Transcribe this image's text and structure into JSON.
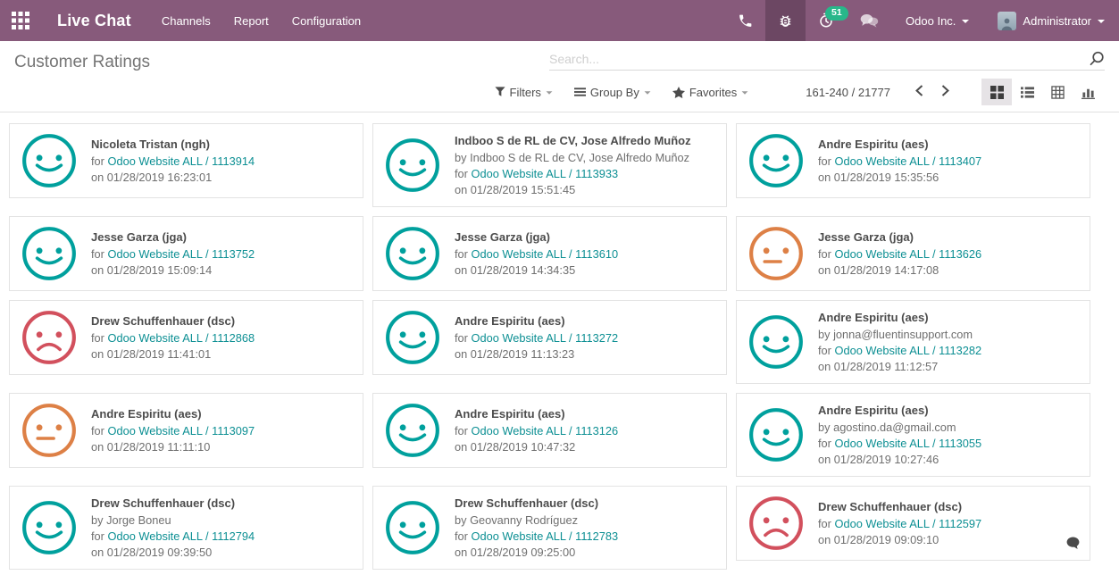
{
  "navbar": {
    "brand": "Live Chat",
    "menus": [
      "Channels",
      "Report",
      "Configuration"
    ],
    "activity_badge_count": "51",
    "company": "Odoo Inc.",
    "user": "Administrator"
  },
  "control_panel": {
    "title": "Customer Ratings",
    "search_placeholder": "Search...",
    "filters_label": "Filters",
    "group_by_label": "Group By",
    "favorites_label": "Favorites",
    "pager_value": "161-240 / 21777"
  },
  "labels": {
    "for_prefix": "for",
    "on_prefix": "on"
  },
  "colors": {
    "navbar_bg": "#875a7b",
    "badge_bg": "#28b78a",
    "link": "#0c8f93",
    "rating": {
      "happy": "#00a09d",
      "neutral": "#dd8046",
      "sad": "#d2505d"
    }
  },
  "cards": [
    {
      "rating": "happy",
      "title": "Nicoleta Tristan (ngh)",
      "by": null,
      "link": "Odoo Website ALL / 1113914",
      "datetime": "01/28/2019 16:23:01",
      "has_message": false
    },
    {
      "rating": "happy",
      "title": "Indboo S de RL de CV, Jose Alfredo Muñoz",
      "by": "by Indboo S de RL de CV, Jose Alfredo Muñoz",
      "link": "Odoo Website ALL / 1113933",
      "datetime": "01/28/2019 15:51:45",
      "has_message": false
    },
    {
      "rating": "happy",
      "title": "Andre Espiritu (aes)",
      "by": null,
      "link": "Odoo Website ALL / 1113407",
      "datetime": "01/28/2019 15:35:56",
      "has_message": false
    },
    {
      "rating": "happy",
      "title": "Jesse Garza (jga)",
      "by": null,
      "link": "Odoo Website ALL / 1113752",
      "datetime": "01/28/2019 15:09:14",
      "has_message": false
    },
    {
      "rating": "happy",
      "title": "Jesse Garza (jga)",
      "by": null,
      "link": "Odoo Website ALL / 1113610",
      "datetime": "01/28/2019 14:34:35",
      "has_message": false
    },
    {
      "rating": "neutral",
      "title": "Jesse Garza (jga)",
      "by": null,
      "link": "Odoo Website ALL / 1113626",
      "datetime": "01/28/2019 14:17:08",
      "has_message": false
    },
    {
      "rating": "sad",
      "title": "Drew Schuffenhauer (dsc)",
      "by": null,
      "link": "Odoo Website ALL / 1112868",
      "datetime": "01/28/2019 11:41:01",
      "has_message": false
    },
    {
      "rating": "happy",
      "title": "Andre Espiritu (aes)",
      "by": null,
      "link": "Odoo Website ALL / 1113272",
      "datetime": "01/28/2019 11:13:23",
      "has_message": false
    },
    {
      "rating": "happy",
      "title": "Andre Espiritu (aes)",
      "by": "by jonna@fluentinsupport.com",
      "link": "Odoo Website ALL / 1113282",
      "datetime": "01/28/2019 11:12:57",
      "has_message": false
    },
    {
      "rating": "neutral",
      "title": "Andre Espiritu (aes)",
      "by": null,
      "link": "Odoo Website ALL / 1113097",
      "datetime": "01/28/2019 11:11:10",
      "has_message": false
    },
    {
      "rating": "happy",
      "title": "Andre Espiritu (aes)",
      "by": null,
      "link": "Odoo Website ALL / 1113126",
      "datetime": "01/28/2019 10:47:32",
      "has_message": false
    },
    {
      "rating": "happy",
      "title": "Andre Espiritu (aes)",
      "by": "by agostino.da@gmail.com",
      "link": "Odoo Website ALL / 1113055",
      "datetime": "01/28/2019 10:27:46",
      "has_message": false
    },
    {
      "rating": "happy",
      "title": "Drew Schuffenhauer (dsc)",
      "by": "by Jorge Boneu",
      "link": "Odoo Website ALL / 1112794",
      "datetime": "01/28/2019 09:39:50",
      "has_message": false
    },
    {
      "rating": "happy",
      "title": "Drew Schuffenhauer (dsc)",
      "by": "by Geovanny Rodríguez",
      "link": "Odoo Website ALL / 1112783",
      "datetime": "01/28/2019 09:25:00",
      "has_message": false
    },
    {
      "rating": "sad",
      "title": "Drew Schuffenhauer (dsc)",
      "by": null,
      "link": "Odoo Website ALL / 1112597",
      "datetime": "01/28/2019 09:09:10",
      "has_message": true
    }
  ]
}
